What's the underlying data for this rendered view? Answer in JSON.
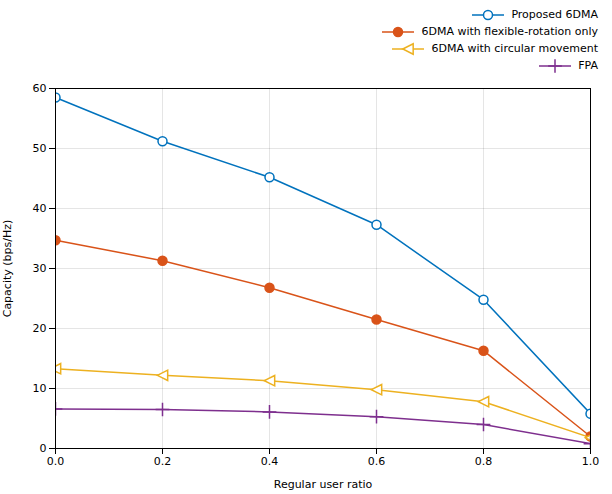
{
  "chart_data": {
    "type": "line",
    "x": [
      0,
      0.2,
      0.4,
      0.6,
      0.8,
      1.0
    ],
    "series": [
      {
        "name": "Proposed 6DMA",
        "color": "#0072BD",
        "marker": "circle-open",
        "values": [
          58.5,
          51.2,
          45.2,
          37.3,
          24.8,
          5.8
        ]
      },
      {
        "name": "6DMA with flexible-rotation only",
        "color": "#D95319",
        "marker": "circle",
        "values": [
          34.7,
          31.3,
          26.8,
          21.5,
          16.3,
          2.0
        ]
      },
      {
        "name": "6DMA with circular movement",
        "color": "#EDB120",
        "marker": "triangle-left-open",
        "values": [
          13.3,
          12.2,
          11.3,
          9.8,
          7.8,
          1.8
        ]
      },
      {
        "name": "FPA",
        "color": "#7E2F8E",
        "marker": "plus",
        "values": [
          6.6,
          6.5,
          6.1,
          5.3,
          4.0,
          0.8
        ]
      }
    ],
    "xlabel": "Regular user ratio",
    "ylabel": "Capacity (bps/Hz)",
    "xlim": [
      0,
      1
    ],
    "ylim": [
      0,
      60
    ],
    "xticks": [
      {
        "value": 0,
        "label": "0.0"
      },
      0.2,
      0.4,
      0.6,
      0.8,
      {
        "value": 1.0,
        "label": "1.0"
      }
    ],
    "yticks": [
      0,
      10,
      20,
      30,
      40,
      50,
      60
    ],
    "grid": true,
    "legend": "upper right"
  }
}
